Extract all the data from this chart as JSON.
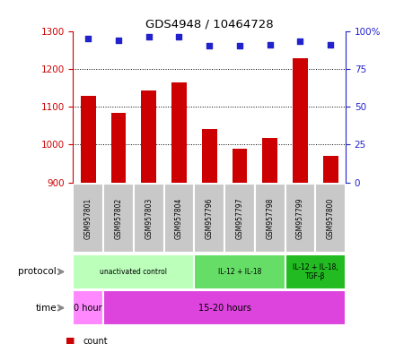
{
  "title": "GDS4948 / 10464728",
  "samples": [
    "GSM957801",
    "GSM957802",
    "GSM957803",
    "GSM957804",
    "GSM957796",
    "GSM957797",
    "GSM957798",
    "GSM957799",
    "GSM957800"
  ],
  "counts": [
    1128,
    1083,
    1143,
    1163,
    1040,
    990,
    1017,
    1228,
    970
  ],
  "percentile_ranks": [
    95,
    94,
    96,
    96,
    90,
    90,
    91,
    93,
    91
  ],
  "ylim_left": [
    900,
    1300
  ],
  "ylim_right": [
    0,
    100
  ],
  "yticks_left": [
    900,
    1000,
    1100,
    1200,
    1300
  ],
  "yticks_right": [
    0,
    25,
    50,
    75,
    100
  ],
  "bar_color": "#cc0000",
  "dot_color": "#2222cc",
  "bar_bottom": 900,
  "protocol_groups": [
    {
      "label": "unactivated control",
      "start": 0,
      "end": 4,
      "color": "#bbffbb"
    },
    {
      "label": "IL-12 + IL-18",
      "start": 4,
      "end": 7,
      "color": "#66dd66"
    },
    {
      "label": "IL-12 + IL-18,\nTGF-β",
      "start": 7,
      "end": 9,
      "color": "#22bb22"
    }
  ],
  "time_groups": [
    {
      "label": "0 hour",
      "start": 0,
      "end": 1,
      "color": "#ff88ff"
    },
    {
      "label": "15-20 hours",
      "start": 1,
      "end": 9,
      "color": "#dd44dd"
    }
  ],
  "sample_box_color": "#c8c8c8",
  "legend_count_color": "#cc0000",
  "legend_pct_color": "#2222cc",
  "left_label_color": "#444444",
  "arrow_color": "#888888"
}
